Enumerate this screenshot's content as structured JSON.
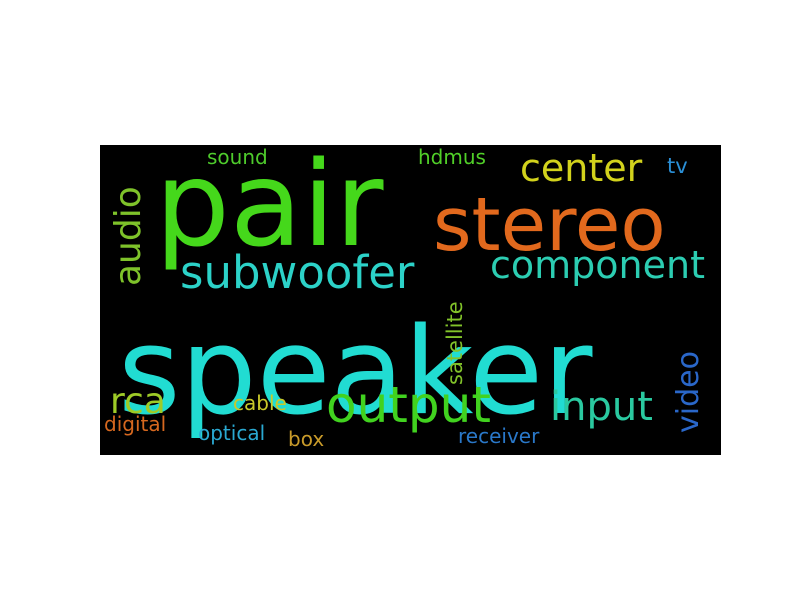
{
  "background": "#000000",
  "page_background": "#ffffff",
  "words": [
    {
      "key": "speaker",
      "text": "speaker",
      "color": "#21dcd2"
    },
    {
      "key": "pair",
      "text": "pair",
      "color": "#45d81b"
    },
    {
      "key": "stereo",
      "text": "stereo",
      "color": "#e2691d"
    },
    {
      "key": "subwoofer",
      "text": "subwoofer",
      "color": "#2cd2c8"
    },
    {
      "key": "component",
      "text": "component",
      "color": "#2ccdb2"
    },
    {
      "key": "center",
      "text": "center",
      "color": "#d2d21c"
    },
    {
      "key": "audio",
      "text": "audio",
      "color": "#7ec22a"
    },
    {
      "key": "output",
      "text": "output",
      "color": "#41d21f"
    },
    {
      "key": "input",
      "text": "input",
      "color": "#2ac9a0"
    },
    {
      "key": "video",
      "text": "video",
      "color": "#2a67c9"
    },
    {
      "key": "rca",
      "text": "rca",
      "color": "#9ecb27"
    },
    {
      "key": "satellite",
      "text": "satellite",
      "color": "#82c32a"
    },
    {
      "key": "sound",
      "text": "sound",
      "color": "#4ecb2c"
    },
    {
      "key": "hdmus",
      "text": "hdmus",
      "color": "#50cf28"
    },
    {
      "key": "tv",
      "text": "tv",
      "color": "#2a8fd6"
    },
    {
      "key": "cable",
      "text": "cable",
      "color": "#c9c92a"
    },
    {
      "key": "digital",
      "text": "digital",
      "color": "#d6681f"
    },
    {
      "key": "optical",
      "text": "optical",
      "color": "#2aa9d2"
    },
    {
      "key": "box",
      "text": "box",
      "color": "#c99b2a"
    },
    {
      "key": "receiver",
      "text": "receiver",
      "color": "#2a78c9"
    }
  ]
}
